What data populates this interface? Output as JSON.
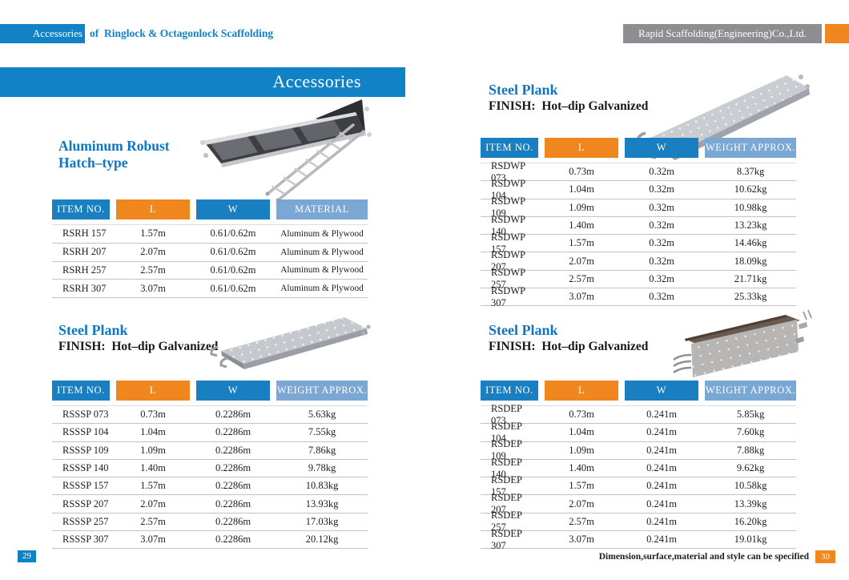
{
  "header": {
    "tag": "Accessories",
    "rest": "of  Ringlock & Octagonlock Scaffolding",
    "company": "Rapid Scaffolding(Engineering)Co.,Ltd."
  },
  "colors": {
    "primary_blue": "#1282c6",
    "orange": "#f0871e",
    "light_blue": "#7aa7d4",
    "gray": "#8d8d92",
    "title_blue": "#0e76c2",
    "header_palette": [
      "#1a7fc1",
      "#f0871e",
      "#1a7fc1",
      "#7aa7d4"
    ]
  },
  "left_page": {
    "page_number": "29",
    "banner_title": "Accessories",
    "section1": {
      "title_line1": "Aluminum Robust",
      "title_line2": "Hatch–type",
      "table": {
        "headers": [
          "ITEM NO.",
          "L",
          "W",
          "MATERIAL"
        ],
        "rows": [
          [
            "RSRH 157",
            "1.57m",
            "0.61/0.62m",
            "Aluminum & Plywood"
          ],
          [
            "RSRH 207",
            "2.07m",
            "0.61/0.62m",
            "Aluminum & Plywood"
          ],
          [
            "RSRH 257",
            "2.57m",
            "0.61/0.62m",
            "Aluminum & Plywood"
          ],
          [
            "RSRH 307",
            "3.07m",
            "0.61/0.62m",
            "Aluminum & Plywood"
          ]
        ]
      }
    },
    "section2": {
      "title": "Steel Plank",
      "finish": "FINISH:  Hot–dip Galvanized",
      "table": {
        "headers": [
          "ITEM NO.",
          "L",
          "W",
          "WEIGHT APPROX."
        ],
        "rows": [
          [
            "RSSSP 073",
            "0.73m",
            "0.2286m",
            "5.63kg"
          ],
          [
            "RSSSP 104",
            "1.04m",
            "0.2286m",
            "7.55kg"
          ],
          [
            "RSSSP 109",
            "1.09m",
            "0.2286m",
            "7.86kg"
          ],
          [
            "RSSSP 140",
            "1.40m",
            "0.2286m",
            "9.78kg"
          ],
          [
            "RSSSP 157",
            "1.57m",
            "0.2286m",
            "10.83kg"
          ],
          [
            "RSSSP 207",
            "2.07m",
            "0.2286m",
            "13.93kg"
          ],
          [
            "RSSSP 257",
            "2.57m",
            "0.2286m",
            "17.03kg"
          ],
          [
            "RSSSP 307",
            "3.07m",
            "0.2286m",
            "20.12kg"
          ]
        ]
      }
    }
  },
  "right_page": {
    "page_number": "30",
    "footer_note": "Dimension,surface,material and style can be specified",
    "section1": {
      "title": "Steel Plank",
      "finish": "FINISH:  Hot–dip Galvanized",
      "table": {
        "headers": [
          "ITEM NO.",
          "L",
          "W",
          "WEIGHT APPROX."
        ],
        "rows": [
          [
            "RSDWP 073",
            "0.73m",
            "0.32m",
            "8.37kg"
          ],
          [
            "RSDWP 104",
            "1.04m",
            "0.32m",
            "10.62kg"
          ],
          [
            "RSDWP 109",
            "1.09m",
            "0.32m",
            "10.98kg"
          ],
          [
            "RSDWP 140",
            "1.40m",
            "0.32m",
            "13.23kg"
          ],
          [
            "RSDWP 157",
            "1.57m",
            "0.32m",
            "14.46kg"
          ],
          [
            "RSDWP 207",
            "2.07m",
            "0.32m",
            "18.09kg"
          ],
          [
            "RSDWP 257",
            "2.57m",
            "0.32m",
            "21.71kg"
          ],
          [
            "RSDWP 307",
            "3.07m",
            "0.32m",
            "25.33kg"
          ]
        ]
      }
    },
    "section2": {
      "title": "Steel Plank",
      "finish": "FINISH:  Hot–dip Galvanized",
      "table": {
        "headers": [
          "ITEM NO.",
          "L",
          "W",
          "WEIGHT APPROX."
        ],
        "rows": [
          [
            "RSDEP 073",
            "0.73m",
            "0.241m",
            "5.85kg"
          ],
          [
            "RSDEP 104",
            "1.04m",
            "0.241m",
            "7.60kg"
          ],
          [
            "RSDEP 109",
            "1.09m",
            "0.241m",
            "7.88kg"
          ],
          [
            "RSDEP 140",
            "1.40m",
            "0.241m",
            "9.62kg"
          ],
          [
            "RSDEP 157",
            "1.57m",
            "0.241m",
            "10.58kg"
          ],
          [
            "RSDEP 207",
            "2.07m",
            "0.241m",
            "13.39kg"
          ],
          [
            "RSDEP 257",
            "2.57m",
            "0.241m",
            "16.20kg"
          ],
          [
            "RSDEP 307",
            "3.07m",
            "0.241m",
            "19.01kg"
          ]
        ]
      }
    }
  }
}
